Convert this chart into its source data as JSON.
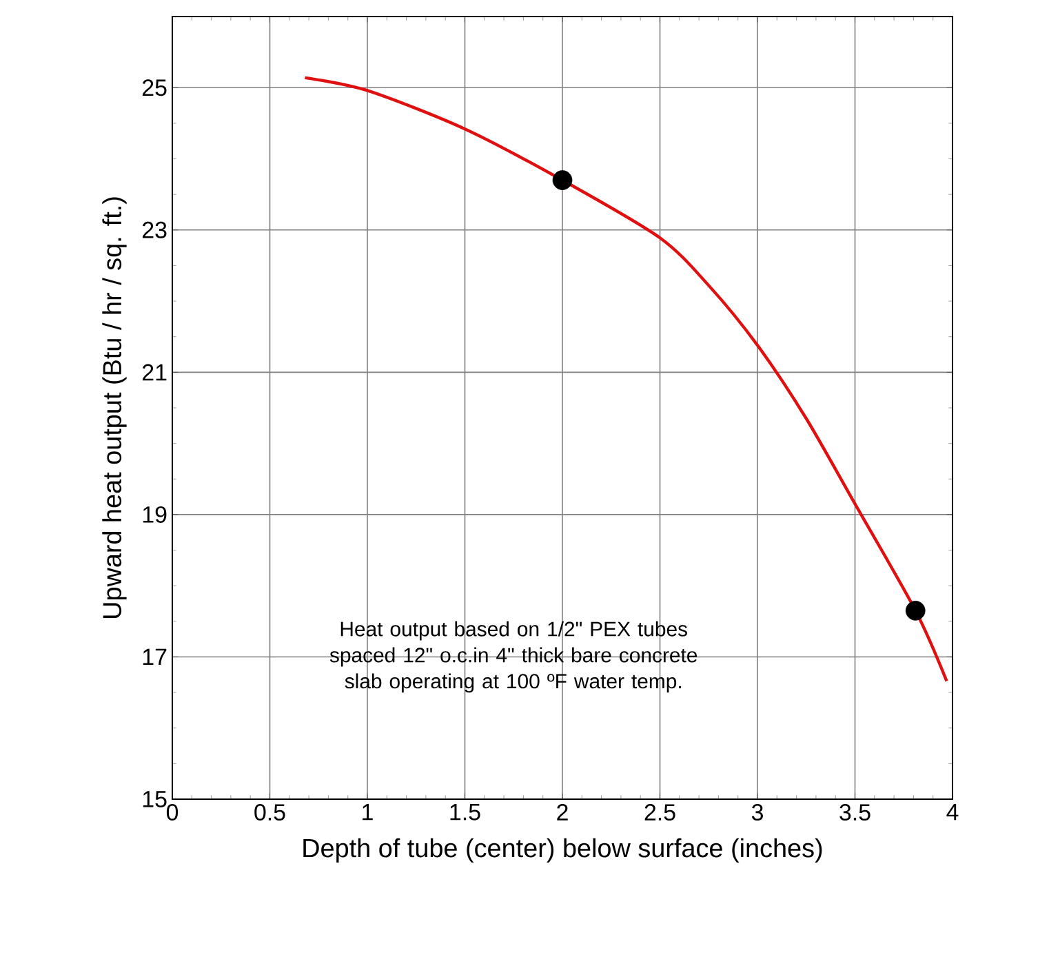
{
  "chart_data": {
    "type": "line",
    "xlabel": "Depth of tube (center) below surface (inches)",
    "ylabel": "Upward heat output (Btu / hr / sq. ft.)",
    "xlim": [
      0,
      4
    ],
    "ylim": [
      15,
      26
    ],
    "xticks": [
      0,
      0.5,
      1,
      1.5,
      2,
      2.5,
      3,
      3.5,
      4
    ],
    "yticks": [
      15,
      17,
      19,
      21,
      23,
      25
    ],
    "grid": true,
    "marker": "none",
    "series": [
      {
        "color": "#e01010",
        "x": [
          0.68,
          1,
          1.5,
          2,
          2.5,
          2.75,
          3,
          3.25,
          3.5,
          3.81,
          3.97
        ],
        "values": [
          25.14,
          24.96,
          24.42,
          23.7,
          22.89,
          22.22,
          21.38,
          20.35,
          19.15,
          17.65,
          16.66
        ]
      },
      {
        "type": "scatter",
        "marker": "circle",
        "color": "#000000",
        "x": [
          2,
          3.81
        ],
        "values": [
          23.7,
          17.65
        ]
      }
    ],
    "annotations": [
      "Heat output based on 1/2\" PEX tubes spaced 12\" o.c.in 4\" thick bare concrete slab operating at 100 ºF water temp."
    ]
  }
}
